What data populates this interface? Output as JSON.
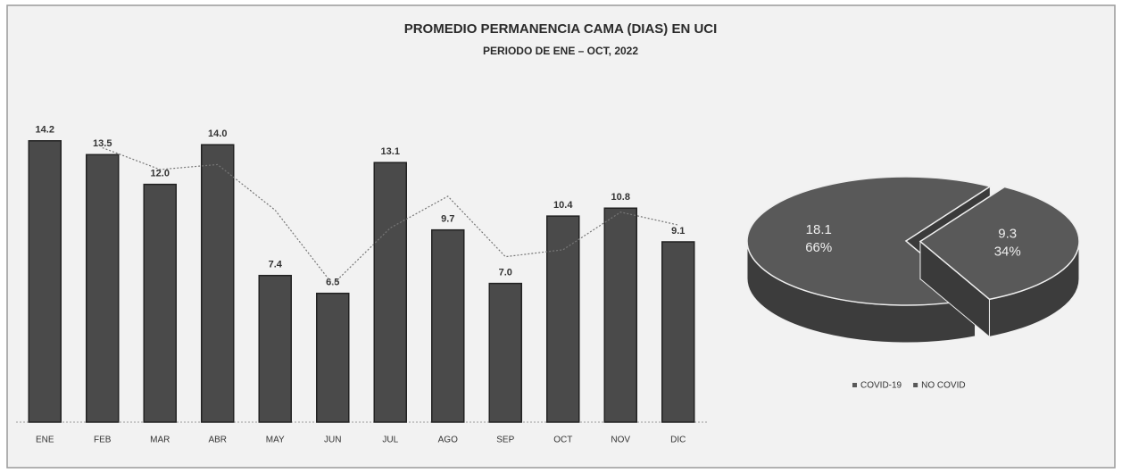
{
  "chart_data": [
    {
      "type": "bar",
      "title": "PROMEDIO PERMANENCIA CAMA (DIAS) EN UCI",
      "subtitle": "PERIODO DE ENE – OCT, 2022",
      "categories": [
        "ENE",
        "FEB",
        "MAR",
        "ABR",
        "MAY",
        "JUN",
        "JUL",
        "AGO",
        "SEP",
        "OCT",
        "NOV",
        "DIC"
      ],
      "values": [
        14.2,
        13.5,
        12.0,
        14.0,
        7.4,
        6.5,
        13.1,
        9.7,
        7.0,
        10.4,
        10.8,
        9.1
      ],
      "value_labels": [
        "14.2",
        "13.5",
        "12.0",
        "14.0",
        "7.4",
        "6.5",
        "13.1",
        "9.7",
        "7.0",
        "10.4",
        "10.8",
        "9.1"
      ],
      "color": "#4a4a4a",
      "ylim": [
        0,
        15
      ],
      "trendline": "moving_average",
      "trendline_period": 2
    },
    {
      "type": "pie",
      "series": [
        {
          "name": "COVID-19",
          "color": "#595959",
          "values": [
            18.1
          ],
          "percent_labels": [
            "66%"
          ]
        },
        {
          "name": "NO COVID",
          "color": "#595959",
          "values": [
            9.3
          ],
          "percent_labels": [
            "34%"
          ]
        }
      ],
      "legend": "bottom"
    }
  ]
}
